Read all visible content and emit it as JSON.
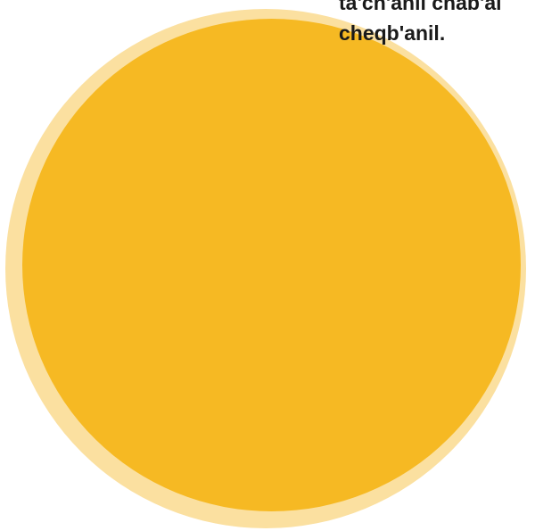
{
  "caption": {
    "line1": "ta'ch'anil chab'al",
    "line2": "cheqb'anil."
  },
  "colors": {
    "circle_fill": "#f6b923",
    "circle_ring": "#fbe0a0",
    "text": "#1a1a1a",
    "background": "#ffffff"
  }
}
